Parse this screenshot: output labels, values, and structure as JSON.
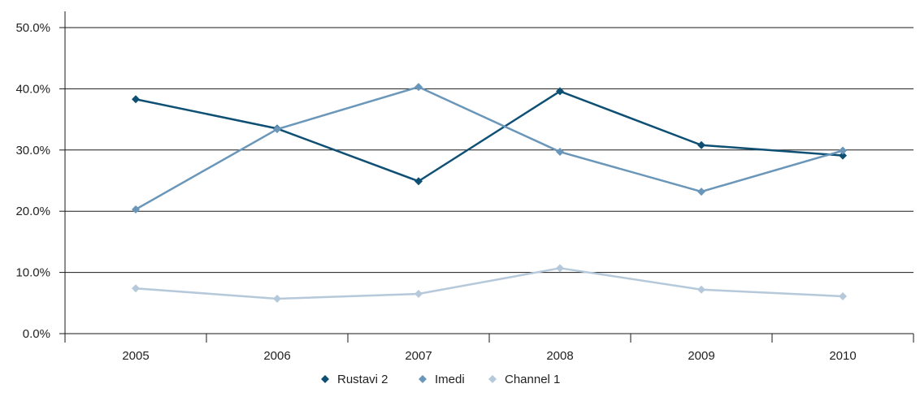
{
  "chart_data": {
    "type": "line",
    "categories": [
      "2005",
      "2006",
      "2007",
      "2008",
      "2009",
      "2010"
    ],
    "ylim": [
      0,
      50
    ],
    "yticks": [
      0,
      10,
      20,
      30,
      40,
      50
    ],
    "ytick_labels": [
      "0.0%",
      "10.0%",
      "20.0%",
      "30.0%",
      "40.0%",
      "50.0%"
    ],
    "grid": true,
    "legend_position": "bottom",
    "series": [
      {
        "name": "Rustavi 2",
        "color": "#0e4f74",
        "marker": "diamond",
        "values": [
          38.3,
          33.5,
          24.9,
          39.6,
          30.8,
          29.1
        ]
      },
      {
        "name": "Imedi",
        "color": "#6a97b9",
        "marker": "diamond",
        "values": [
          20.3,
          33.4,
          40.3,
          29.7,
          23.2,
          29.9
        ]
      },
      {
        "name": "Channel 1",
        "color": "#b5c9da",
        "marker": "diamond",
        "values": [
          7.4,
          5.7,
          6.5,
          10.7,
          7.2,
          6.1
        ]
      }
    ]
  }
}
